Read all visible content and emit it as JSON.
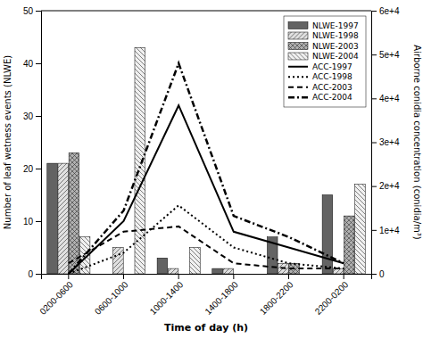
{
  "chart_data": {
    "type": "bar",
    "categories": [
      "0200-0600",
      "0600-1000",
      "1000-1400",
      "1400-1800",
      "1800-2200",
      "2200-0200"
    ],
    "xlabel": "Time of day (h)",
    "ylabel": "Number of leaf wetness events (NLWE)",
    "y2label": "Airborne conidia concentration (conidia/m³)",
    "ylim": [
      0,
      50
    ],
    "yticks": [
      0,
      10,
      20,
      30,
      40,
      50
    ],
    "y2lim": [
      0,
      60000
    ],
    "y2ticks": [
      0,
      {
        "value": 10000,
        "label": "1e+4"
      },
      {
        "value": 20000,
        "label": "2e+4"
      },
      {
        "value": 30000,
        "label": "3e+4"
      },
      {
        "value": 40000,
        "label": "4e+4"
      },
      {
        "value": 50000,
        "label": "5e+4"
      },
      {
        "value": 60000,
        "label": "6e+4"
      }
    ],
    "grid": false,
    "legend": "upper right",
    "series": [
      {
        "name": "NLWE-1997",
        "type": "bar",
        "color": "#636363",
        "values": [
          21,
          0,
          3,
          1,
          7,
          15
        ]
      },
      {
        "name": "NLWE-1998",
        "type": "bar",
        "color": "#e0e0e0",
        "values": [
          21,
          5,
          1,
          1,
          2,
          1
        ]
      },
      {
        "name": "NLWE-2003",
        "type": "bar",
        "color": "#b0b0b0",
        "values": [
          23,
          0,
          0,
          0,
          2,
          11
        ]
      },
      {
        "name": "NLWE-2004",
        "type": "bar",
        "color": "#f0f0f0",
        "values": [
          7,
          43,
          5,
          0,
          0,
          17
        ]
      },
      {
        "name": "ACC-1997",
        "type": "line",
        "color": "black",
        "line_style": "solid",
        "values": [
          0,
          10,
          32,
          8,
          5,
          2
        ]
      },
      {
        "name": "ACC-1998",
        "type": "line",
        "color": "black",
        "line_style": "dotted",
        "values": [
          0,
          4,
          13,
          5,
          2,
          1
        ]
      },
      {
        "name": "ACC-2003",
        "type": "line",
        "color": "black",
        "line_style": "dashed",
        "values": [
          2,
          8,
          9,
          2,
          1,
          1
        ]
      },
      {
        "name": "ACC-2004",
        "type": "line",
        "color": "black",
        "line_style": "dashdot",
        "values": [
          0,
          12,
          40,
          11,
          7,
          2
        ]
      }
    ]
  }
}
